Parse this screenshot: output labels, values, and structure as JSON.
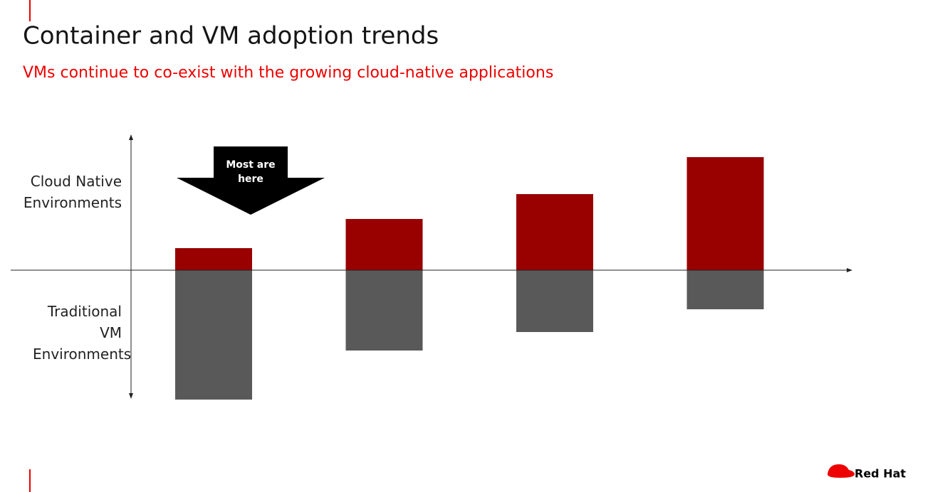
{
  "chart_data": {
    "type": "diverging-bar",
    "title": "Container and VM adoption trends",
    "subtitle": "VMs continue to co-exist with the growing cloud-native applications",
    "annotation": "Most are here",
    "categories": [
      null,
      null,
      null,
      null
    ],
    "series": [
      {
        "name": "Cloud Native Environments",
        "color": "#990000",
        "values": [
          31,
          72,
          107,
          159
        ]
      },
      {
        "name": "Traditional VM Environments",
        "color": "#595959",
        "values": [
          -182,
          -113,
          -87,
          -55
        ]
      }
    ],
    "ylim": [
      -182,
      192
    ]
  },
  "logo_text": "Red Hat"
}
